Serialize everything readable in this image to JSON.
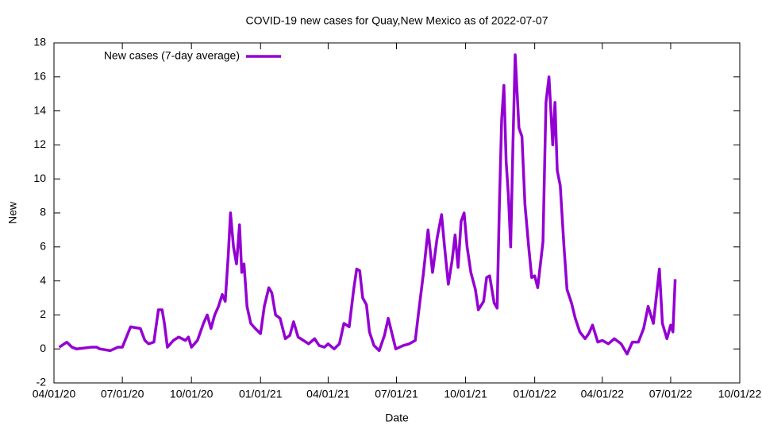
{
  "chart_data": {
    "type": "line",
    "title": "COVID-19 new cases for Quay,New Mexico as of 2022-07-07",
    "xlabel": "Date",
    "ylabel": "New",
    "xlim": [
      "2020-04-01",
      "2022-10-01"
    ],
    "ylim": [
      -2,
      18
    ],
    "yticks": [
      -2,
      0,
      2,
      4,
      6,
      8,
      10,
      12,
      14,
      16,
      18
    ],
    "xticks": [
      {
        "value": "2020-04-01",
        "label": "04/01/20"
      },
      {
        "value": "2020-07-01",
        "label": "07/01/20"
      },
      {
        "value": "2020-10-01",
        "label": "10/01/20"
      },
      {
        "value": "2021-01-01",
        "label": "01/01/21"
      },
      {
        "value": "2021-04-01",
        "label": "04/01/21"
      },
      {
        "value": "2021-07-01",
        "label": "07/01/21"
      },
      {
        "value": "2021-10-01",
        "label": "10/01/21"
      },
      {
        "value": "2022-01-01",
        "label": "01/01/22"
      },
      {
        "value": "2022-04-01",
        "label": "04/01/22"
      },
      {
        "value": "2022-07-01",
        "label": "07/01/22"
      },
      {
        "value": "2022-10-01",
        "label": "10/01/22"
      }
    ],
    "legend": "top-left",
    "grid": false,
    "x": [
      "2020-04-08",
      "2020-04-18",
      "2020-04-25",
      "2020-05-01",
      "2020-05-20",
      "2020-05-28",
      "2020-06-01",
      "2020-06-15",
      "2020-06-25",
      "2020-07-01",
      "2020-07-12",
      "2020-07-25",
      "2020-07-31",
      "2020-08-05",
      "2020-08-12",
      "2020-08-18",
      "2020-08-23",
      "2020-08-26",
      "2020-08-30",
      "2020-09-07",
      "2020-09-14",
      "2020-09-23",
      "2020-09-27",
      "2020-10-01",
      "2020-10-09",
      "2020-10-17",
      "2020-10-22",
      "2020-10-27",
      "2020-11-01",
      "2020-11-06",
      "2020-11-11",
      "2020-11-15",
      "2020-11-19",
      "2020-11-22",
      "2020-11-26",
      "2020-11-30",
      "2020-12-04",
      "2020-12-07",
      "2020-12-10",
      "2020-12-14",
      "2020-12-19",
      "2020-12-25",
      "2021-01-01",
      "2021-01-06",
      "2021-01-12",
      "2021-01-16",
      "2021-01-21",
      "2021-01-27",
      "2021-02-03",
      "2021-02-09",
      "2021-02-14",
      "2021-02-20",
      "2021-02-27",
      "2021-03-06",
      "2021-03-14",
      "2021-03-20",
      "2021-03-27",
      "2021-04-01",
      "2021-04-09",
      "2021-04-16",
      "2021-04-22",
      "2021-04-29",
      "2021-05-05",
      "2021-05-09",
      "2021-05-13",
      "2021-05-17",
      "2021-05-22",
      "2021-05-26",
      "2021-06-01",
      "2021-06-08",
      "2021-06-15",
      "2021-06-20",
      "2021-06-25",
      "2021-06-30",
      "2021-07-10",
      "2021-07-18",
      "2021-07-26",
      "2021-07-30",
      "2021-08-06",
      "2021-08-12",
      "2021-08-18",
      "2021-08-24",
      "2021-08-30",
      "2021-09-03",
      "2021-09-08",
      "2021-09-13",
      "2021-09-17",
      "2021-09-21",
      "2021-09-25",
      "2021-09-29",
      "2021-10-03",
      "2021-10-08",
      "2021-10-14",
      "2021-10-18",
      "2021-10-25",
      "2021-10-29",
      "2021-11-02",
      "2021-11-08",
      "2021-11-12",
      "2021-11-15",
      "2021-11-18",
      "2021-11-21",
      "2021-11-24",
      "2021-11-27",
      "2021-11-30",
      "2021-12-03",
      "2021-12-06",
      "2021-12-11",
      "2021-12-15",
      "2021-12-19",
      "2021-12-24",
      "2021-12-28",
      "2022-01-01",
      "2022-01-05",
      "2022-01-12",
      "2022-01-16",
      "2022-01-20",
      "2022-01-25",
      "2022-01-28",
      "2022-01-31",
      "2022-02-04",
      "2022-02-09",
      "2022-02-13",
      "2022-02-19",
      "2022-02-24",
      "2022-03-02",
      "2022-03-09",
      "2022-03-14",
      "2022-03-19",
      "2022-03-26",
      "2022-04-01",
      "2022-04-09",
      "2022-04-17",
      "2022-04-26",
      "2022-05-04",
      "2022-05-11",
      "2022-05-19",
      "2022-05-26",
      "2022-06-01",
      "2022-06-08",
      "2022-06-13",
      "2022-06-16",
      "2022-06-20",
      "2022-06-26",
      "2022-07-01",
      "2022-07-04",
      "2022-07-07"
    ],
    "series": [
      {
        "name": "New cases (7-day average)",
        "color": "#9400d3",
        "values": [
          0.1,
          0.4,
          0.1,
          0,
          0.1,
          0.1,
          0,
          -0.1,
          0.1,
          0.1,
          1.3,
          1.2,
          0.5,
          0.3,
          0.4,
          2.3,
          2.3,
          1.5,
          0.1,
          0.5,
          0.7,
          0.5,
          0.7,
          0.1,
          0.5,
          1.5,
          2.0,
          1.2,
          2.0,
          2.5,
          3.2,
          2.8,
          5.5,
          8.0,
          6.0,
          5.0,
          7.3,
          4.5,
          5.0,
          2.5,
          1.5,
          1.2,
          0.9,
          2.5,
          3.6,
          3.3,
          2.0,
          1.8,
          0.6,
          0.8,
          1.6,
          0.7,
          0.5,
          0.3,
          0.6,
          0.2,
          0.1,
          0.3,
          0,
          0.3,
          1.5,
          1.3,
          3.5,
          4.7,
          4.6,
          3.0,
          2.6,
          1.0,
          0.2,
          -0.1,
          0.8,
          1.8,
          0.9,
          0,
          0.2,
          0.3,
          0.5,
          2.0,
          4.5,
          7.0,
          4.5,
          6.5,
          7.9,
          6.0,
          3.8,
          5.2,
          6.7,
          4.8,
          7.5,
          8.0,
          6.0,
          4.5,
          3.5,
          2.3,
          2.8,
          4.2,
          4.3,
          2.7,
          2.4,
          8.5,
          13.5,
          15.5,
          11.0,
          9.0,
          6.0,
          12.0,
          17.3,
          13.0,
          12.5,
          8.5,
          6.0,
          4.2,
          4.3,
          3.6,
          6.3,
          14.5,
          16.0,
          12.0,
          14.5,
          10.5,
          9.6,
          6.0,
          3.5,
          2.7,
          1.8,
          1.0,
          0.6,
          0.9,
          1.4,
          0.4,
          0.5,
          0.3,
          0.6,
          0.3,
          -0.3,
          0.4,
          0.4,
          1.2,
          2.5,
          1.5,
          3.5,
          4.7,
          1.5,
          0.6,
          1.4,
          1.0,
          4.1
        ]
      }
    ]
  }
}
